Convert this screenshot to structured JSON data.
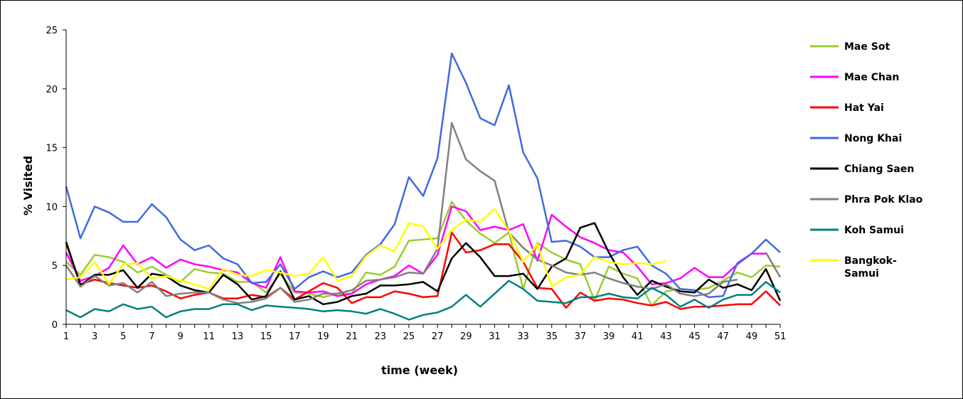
{
  "chart_data": {
    "type": "line",
    "xlabel": "time (week)",
    "ylabel": "% Visited",
    "xlim": [
      1,
      51
    ],
    "ylim": [
      0,
      25
    ],
    "x_ticks": [
      1,
      3,
      5,
      7,
      9,
      11,
      13,
      15,
      17,
      19,
      21,
      23,
      25,
      27,
      29,
      31,
      33,
      35,
      37,
      39,
      41,
      43,
      45,
      47,
      49,
      51
    ],
    "y_ticks": [
      0,
      5,
      10,
      15,
      20,
      25
    ],
    "grid": false,
    "legend": "right",
    "series": [
      {
        "name": "Mae Sot",
        "color": "#9acd32",
        "start": 1,
        "values": [
          5.3,
          4.2,
          5.9,
          5.7,
          5.3,
          4.4,
          4.9,
          4.2,
          3.6,
          4.7,
          4.4,
          4.3,
          3.6,
          3.6,
          2.7,
          4.3,
          2.7,
          2.6,
          2.3,
          2.6,
          2.6,
          4.4,
          4.2,
          4.9,
          7.1,
          7.2,
          7.3,
          10.4,
          8.8,
          7.7,
          6.9,
          7.8,
          3.0,
          6.9,
          6.1,
          5.5,
          5.1,
          2.0,
          4.9,
          4.3,
          3.9,
          1.6,
          2.8,
          3.0,
          2.9,
          3.1,
          3.7,
          4.4,
          4.0,
          5.0,
          4.9
        ]
      },
      {
        "name": "Mae Chan",
        "color": "#ff00ff",
        "start": 1,
        "values": [
          6.1,
          3.7,
          4.1,
          4.8,
          6.7,
          5.1,
          5.7,
          4.8,
          5.5,
          5.1,
          4.9,
          4.6,
          4.4,
          3.5,
          3.1,
          5.7,
          2.8,
          2.7,
          2.8,
          2.4,
          2.6,
          3.4,
          3.8,
          4.1,
          5.0,
          4.3,
          5.9,
          10.0,
          9.6,
          8.0,
          8.3,
          8.0,
          8.5,
          5.4,
          9.3,
          8.3,
          7.4,
          6.9,
          6.3,
          6.1,
          4.9,
          3.4,
          3.5,
          3.9,
          4.8,
          4.0,
          4.0,
          5.1,
          6.0,
          6.0,
          null
        ]
      },
      {
        "name": "Hat Yai",
        "color": "#ff0000",
        "start": 1,
        "values": [
          6.9,
          3.4,
          3.8,
          3.5,
          3.3,
          3.1,
          3.3,
          2.8,
          2.2,
          2.5,
          2.7,
          2.2,
          2.2,
          2.5,
          2.3,
          3.1,
          2.1,
          2.8,
          3.5,
          3.1,
          1.8,
          2.3,
          2.3,
          2.8,
          2.6,
          2.3,
          2.4,
          7.8,
          6.1,
          6.3,
          6.8,
          6.8,
          5.3,
          3.1,
          3.0,
          1.4,
          2.7,
          2.0,
          2.2,
          2.1,
          1.8,
          1.6,
          1.9,
          1.3,
          1.5,
          1.5,
          1.6,
          1.7,
          1.7,
          2.8,
          1.6
        ]
      },
      {
        "name": "Nong Khai",
        "color": "#4169e1",
        "start": 1,
        "values": [
          11.7,
          7.3,
          10.0,
          9.5,
          8.7,
          8.7,
          10.2,
          9.1,
          7.2,
          6.3,
          6.7,
          5.6,
          5.1,
          3.5,
          3.6,
          5.1,
          3.0,
          4.0,
          4.5,
          4.0,
          4.4,
          5.9,
          6.8,
          8.5,
          12.5,
          10.9,
          14.1,
          23.0,
          20.5,
          17.5,
          16.9,
          20.3,
          14.6,
          12.4,
          7.0,
          7.1,
          6.6,
          5.7,
          5.7,
          6.3,
          6.6,
          5.0,
          4.3,
          3.0,
          2.9,
          2.3,
          2.4,
          5.2,
          6.0,
          7.2,
          6.1
        ]
      },
      {
        "name": "Chiang Saen",
        "color": "#000000",
        "start": 1,
        "values": [
          7.0,
          3.3,
          4.2,
          4.2,
          4.6,
          3.1,
          4.3,
          4.1,
          3.3,
          2.9,
          2.7,
          4.2,
          3.4,
          2.1,
          2.4,
          4.5,
          2.1,
          2.4,
          1.7,
          1.9,
          2.4,
          2.6,
          3.3,
          3.3,
          3.4,
          3.6,
          2.8,
          5.6,
          6.9,
          5.7,
          4.1,
          4.1,
          4.3,
          3.0,
          4.9,
          5.6,
          8.2,
          8.6,
          6.1,
          4.0,
          2.5,
          3.7,
          3.2,
          2.8,
          2.7,
          3.8,
          3.1,
          3.4,
          2.9,
          4.7,
          2.0
        ]
      },
      {
        "name": "Phra Pok Klao",
        "color": "#808080",
        "start": 1,
        "values": [
          5.0,
          3.2,
          4.1,
          3.3,
          3.5,
          2.7,
          3.6,
          2.4,
          2.6,
          2.7,
          2.7,
          2.1,
          1.8,
          1.9,
          2.2,
          3.1,
          1.9,
          2.1,
          2.6,
          2.6,
          2.9,
          3.7,
          3.8,
          4.0,
          4.4,
          4.3,
          6.4,
          17.1,
          14.0,
          13.0,
          12.2,
          7.8,
          6.5,
          5.5,
          5.0,
          4.4,
          4.2,
          4.4,
          3.9,
          3.5,
          3.2,
          3.0,
          3.4,
          2.6,
          2.4,
          2.6,
          3.6,
          3.8,
          null,
          6.1,
          4.0
        ]
      },
      {
        "name": "Koh Samui",
        "color": "#008080",
        "start": 1,
        "values": [
          1.2,
          0.6,
          1.3,
          1.1,
          1.7,
          1.3,
          1.5,
          0.6,
          1.1,
          1.3,
          1.3,
          1.7,
          1.7,
          1.2,
          1.6,
          1.5,
          1.4,
          1.3,
          1.1,
          1.2,
          1.1,
          0.9,
          1.3,
          0.9,
          0.4,
          0.8,
          1.0,
          1.5,
          2.5,
          1.5,
          2.6,
          3.7,
          3.0,
          2.0,
          1.9,
          1.8,
          2.3,
          2.3,
          2.6,
          2.3,
          2.2,
          3.1,
          2.5,
          1.5,
          2.1,
          1.4,
          2.1,
          2.5,
          2.5,
          3.6,
          2.7
        ]
      },
      {
        "name": "Bangkok-\nSamui",
        "color": "#ffff00",
        "start": 1,
        "values": [
          3.8,
          4.0,
          5.3,
          3.4,
          5.1,
          5.2,
          3.9,
          4.1,
          3.7,
          3.4,
          3.0,
          4.7,
          4.2,
          4.1,
          4.6,
          4.4,
          4.1,
          4.3,
          5.7,
          3.7,
          4.1,
          5.8,
          6.7,
          6.2,
          8.6,
          8.3,
          6.4,
          8.0,
          8.9,
          8.7,
          9.8,
          7.9,
          5.3,
          6.8,
          3.2,
          4.0,
          4.2,
          5.7,
          5.3,
          5.1,
          5.2,
          5.1,
          5.4,
          null,
          null,
          null,
          null,
          null,
          null,
          null,
          null
        ]
      }
    ]
  }
}
